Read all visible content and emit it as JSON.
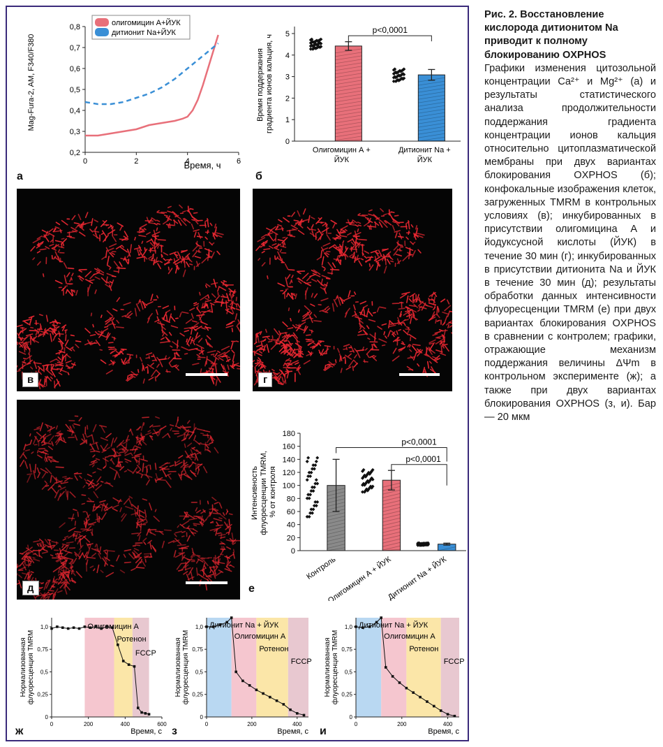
{
  "caption": {
    "title": "Рис. 2. Восстановление кислорода дитионитом Na приводит к полному блокированию OXPHOS",
    "body": "Графики изменения цитозольной концентрации Ca²⁺ и Mg²⁺ (а) и результаты статистического анализа продолжительности поддержания градиента концентрации ионов кальция относительно цитоплазматической мембраны при двух вариантах блокирования OXPHOS (б); конфокальные изображения клеток, загруженных TMRM в контрольных условиях (в); инкубированных в присутствии олигомицина А и йодуксусной кислоты (ЙУК) в течение 30 мин (г); инкубированных в присутствии дитионита Na и ЙУК в течение 30 мин (д); результаты обработки данных интенсивности флуоресценции TMRM (е) при двух вариантах блокирования OXPHOS в сравнении с контролем; графики, отражающие механизм поддержания величины ΔΨm в контрольном эксперименте (ж); а также при двух вариантах блокирования OXPHOS (з, и). Бар — 20 мкм"
  },
  "panels": {
    "a": "а",
    "b": "б",
    "v": "в",
    "g": "г",
    "d": "д",
    "e": "е",
    "zh": "ж",
    "z": "з",
    "i": "и"
  },
  "colors": {
    "red": "#e8707a",
    "blue": "#3a8fd6",
    "frame": "#3a2a7a"
  },
  "chart_data": [
    {
      "id": "a",
      "type": "line",
      "title": "",
      "xlabel": "Время, ч",
      "ylabel": "Mag-Fura-2, AM, F340/F380",
      "xlim": [
        0,
        6
      ],
      "ylim": [
        0.2,
        0.8
      ],
      "xticks": [
        "0",
        "2",
        "4",
        "6"
      ],
      "yticks": [
        "0,2",
        "0,3",
        "0,4",
        "0,5",
        "0,6",
        "0,7",
        "0,8"
      ],
      "legend": "top-left",
      "series": [
        {
          "name": "олигомицин А+ЙУК",
          "color": "#e8707a",
          "style": "solid",
          "x": [
            0,
            0.5,
            1,
            1.5,
            2,
            2.5,
            3,
            3.5,
            3.8,
            4.0,
            4.2,
            4.4,
            4.6,
            4.8,
            5.0,
            5.2
          ],
          "y": [
            0.28,
            0.28,
            0.29,
            0.3,
            0.31,
            0.33,
            0.34,
            0.35,
            0.36,
            0.37,
            0.4,
            0.45,
            0.52,
            0.6,
            0.68,
            0.76
          ]
        },
        {
          "name": "дитионит Na+ЙУК",
          "color": "#3a8fd6",
          "style": "dashed",
          "x": [
            0,
            0.5,
            1,
            1.5,
            2,
            2.5,
            3,
            3.5,
            4.0,
            4.5,
            5.0,
            5.2
          ],
          "y": [
            0.44,
            0.43,
            0.43,
            0.44,
            0.46,
            0.48,
            0.51,
            0.55,
            0.6,
            0.65,
            0.7,
            0.72
          ]
        }
      ]
    },
    {
      "id": "b",
      "type": "bar",
      "ylabel": "Время поддержания градиента ионов кальция, ч",
      "ylim": [
        0,
        5
      ],
      "yticks": [
        "0",
        "1",
        "2",
        "3",
        "4",
        "5"
      ],
      "categories": [
        "Олигомицин А + ЙУК",
        "Дитионит Na + ЙУК"
      ],
      "values": [
        4.42,
        3.08
      ],
      "errors": [
        0.2,
        0.25
      ],
      "significance": "p<0,0001"
    },
    {
      "id": "e",
      "type": "bar",
      "ylabel": "Интенсивность флуоресценции TMRM, % от контроля",
      "ylim": [
        0,
        180
      ],
      "yticks": [
        "0",
        "20",
        "40",
        "60",
        "80",
        "100",
        "120",
        "140",
        "160",
        "180"
      ],
      "categories": [
        "Контроль",
        "Олигомицин А + ЙУК",
        "Дитионит Na + ЙУК"
      ],
      "values": [
        100,
        108,
        10
      ],
      "errors": [
        40,
        15,
        1.5
      ],
      "significance": [
        "p<0,0001",
        "p<0,0001"
      ]
    },
    {
      "id": "zh",
      "type": "line",
      "ylabel": "Нормализованная флуоресценция TMRM",
      "xlabel": "Время, с",
      "xlim": [
        0,
        600
      ],
      "ylim": [
        0,
        1.1
      ],
      "xticks": [
        "0",
        "200",
        "400",
        "600"
      ],
      "regions": [
        "Олигомицин А",
        "Ротенон",
        "FCCP"
      ],
      "x": [
        0,
        30,
        60,
        90,
        120,
        150,
        180,
        210,
        240,
        270,
        300,
        330,
        360,
        390,
        420,
        450,
        470,
        490,
        510,
        530
      ],
      "y": [
        0.98,
        1.0,
        0.99,
        0.98,
        0.99,
        0.98,
        1.0,
        0.99,
        1.0,
        0.98,
        1.0,
        0.99,
        0.8,
        0.62,
        0.58,
        0.56,
        0.1,
        0.05,
        0.04,
        0.03
      ]
    },
    {
      "id": "z",
      "type": "line",
      "ylabel": "Нормализованная флуоресценция TMRM",
      "xlabel": "Время, с",
      "xlim": [
        0,
        450
      ],
      "ylim": [
        0,
        1.1
      ],
      "xticks": [
        "0",
        "200",
        "400"
      ],
      "regions": [
        "Дитионит Na + ЙУК",
        "Олигомицин А",
        "Ротенон",
        "FCCP"
      ],
      "x": [
        0,
        30,
        60,
        90,
        110,
        130,
        160,
        190,
        220,
        250,
        280,
        310,
        340,
        370,
        400,
        430
      ],
      "y": [
        1.0,
        1.0,
        1.02,
        1.05,
        1.1,
        0.5,
        0.4,
        0.35,
        0.3,
        0.26,
        0.22,
        0.18,
        0.14,
        0.08,
        0.04,
        0.02
      ]
    },
    {
      "id": "i",
      "type": "line",
      "ylabel": "Нормализованная флуоресценция TMRM",
      "xlabel": "Время, с",
      "xlim": [
        0,
        450
      ],
      "ylim": [
        0,
        1.1
      ],
      "xticks": [
        "0",
        "200",
        "400"
      ],
      "regions": [
        "Дитионит Na + ЙУК",
        "Олигомицин А",
        "Ротенон",
        "FCCP"
      ],
      "x": [
        0,
        30,
        60,
        90,
        110,
        130,
        160,
        190,
        220,
        250,
        280,
        310,
        340,
        370,
        400,
        430
      ],
      "y": [
        1.0,
        0.99,
        1.0,
        1.05,
        1.1,
        0.55,
        0.45,
        0.38,
        0.32,
        0.27,
        0.22,
        0.17,
        0.12,
        0.07,
        0.03,
        0.01
      ]
    }
  ]
}
